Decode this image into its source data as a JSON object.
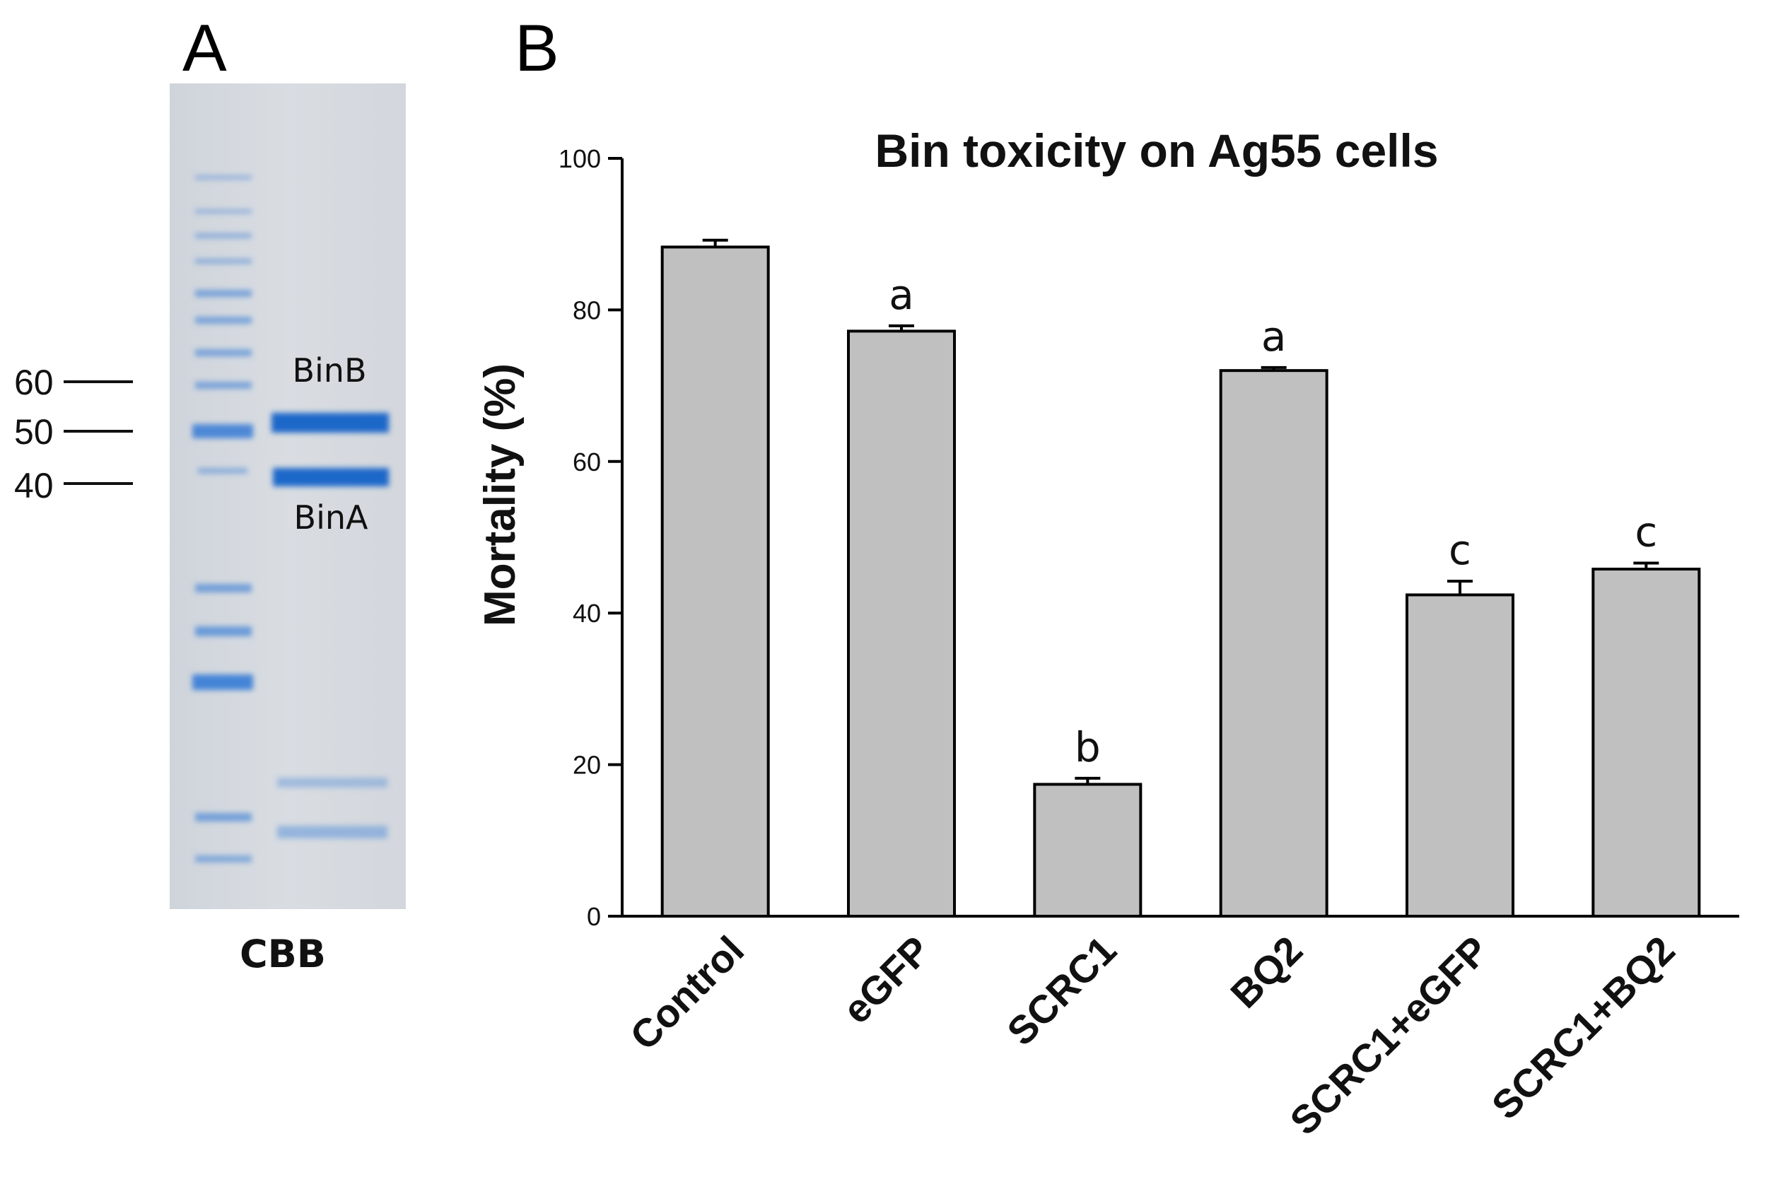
{
  "panel_a": {
    "letter": "A",
    "band_labels": {
      "upper": "BinB",
      "lower": "BinA"
    },
    "mw_markers": [
      "60",
      "50",
      "40"
    ],
    "caption": "CBB",
    "colors": {
      "gel": "#d5d9df",
      "band": "#1f67c9"
    }
  },
  "panel_b": {
    "letter": "B"
  },
  "chart_data": {
    "type": "bar",
    "title": "Bin toxicity on Ag55 cells",
    "xlabel": "",
    "ylabel": "Mortality (%)",
    "ylim": [
      0,
      100
    ],
    "yticks": [
      0,
      20,
      40,
      60,
      80,
      100
    ],
    "categories": [
      "Control",
      "eGFP",
      "SCRC1",
      "BQ2",
      "SCRC1+eGFP",
      "SCRC1+BQ2"
    ],
    "values": [
      88.3,
      77.2,
      17.4,
      72.0,
      42.4,
      45.8
    ],
    "errors": [
      0.9,
      0.7,
      0.8,
      0.4,
      1.8,
      0.8
    ],
    "significance": [
      "",
      "a",
      "b",
      "a",
      "c",
      "c"
    ],
    "grid": false,
    "bar_color": "#c0c0c0"
  }
}
